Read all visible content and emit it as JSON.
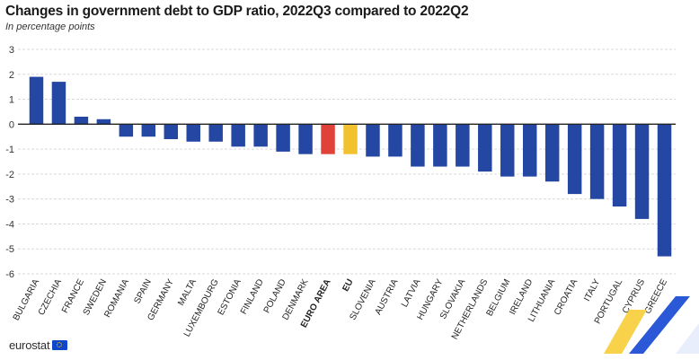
{
  "chart_data": {
    "type": "bar",
    "title": "Changes in government debt to GDP ratio, 2022Q3 compared to 2022Q2",
    "subtitle": "In percentage points",
    "xlabel": "",
    "ylabel": "",
    "ylim": [
      -6,
      3
    ],
    "yticks": [
      3,
      2,
      1,
      0,
      -1,
      -2,
      -3,
      -4,
      -5,
      -6
    ],
    "grid": true,
    "categories": [
      "BULGARIA",
      "CZECHIA",
      "FRANCE",
      "SWEDEN",
      "ROMANIA",
      "SPAIN",
      "GERMANY",
      "MALTA",
      "LUXEMBOURG",
      "ESTONIA",
      "FINLAND",
      "POLAND",
      "DENMARK",
      "EURO AREA",
      "EU",
      "SLOVENIA",
      "AUSTRIA",
      "LATVIA",
      "HUNGARY",
      "SLOVAKIA",
      "NETHERLANDS",
      "BELGIUM",
      "IRELAND",
      "LITHUANIA",
      "CROATIA",
      "ITALY",
      "PORTUGAL",
      "CYPRUS",
      "GREECE"
    ],
    "values": [
      1.9,
      1.7,
      0.3,
      0.2,
      -0.5,
      -0.5,
      -0.6,
      -0.7,
      -0.7,
      -0.9,
      -0.9,
      -1.1,
      -1.2,
      -1.2,
      -1.2,
      -1.3,
      -1.3,
      -1.7,
      -1.7,
      -1.7,
      -1.9,
      -2.1,
      -2.1,
      -2.3,
      -2.8,
      -3.0,
      -3.3,
      -3.8,
      -5.3
    ],
    "highlight": {
      "EURO AREA": "#e0423a",
      "EU": "#f2c12e"
    },
    "bold_categories": [
      "EURO AREA",
      "EU"
    ]
  },
  "colors": {
    "bar": "#2447a3",
    "euro_area": "#e0423a",
    "eu": "#f2c12e",
    "grid": "#d9d9d9",
    "axis": "#222222"
  },
  "branding": {
    "logo_text": "eurostat",
    "logo_icon": "eu-flag-icon"
  }
}
